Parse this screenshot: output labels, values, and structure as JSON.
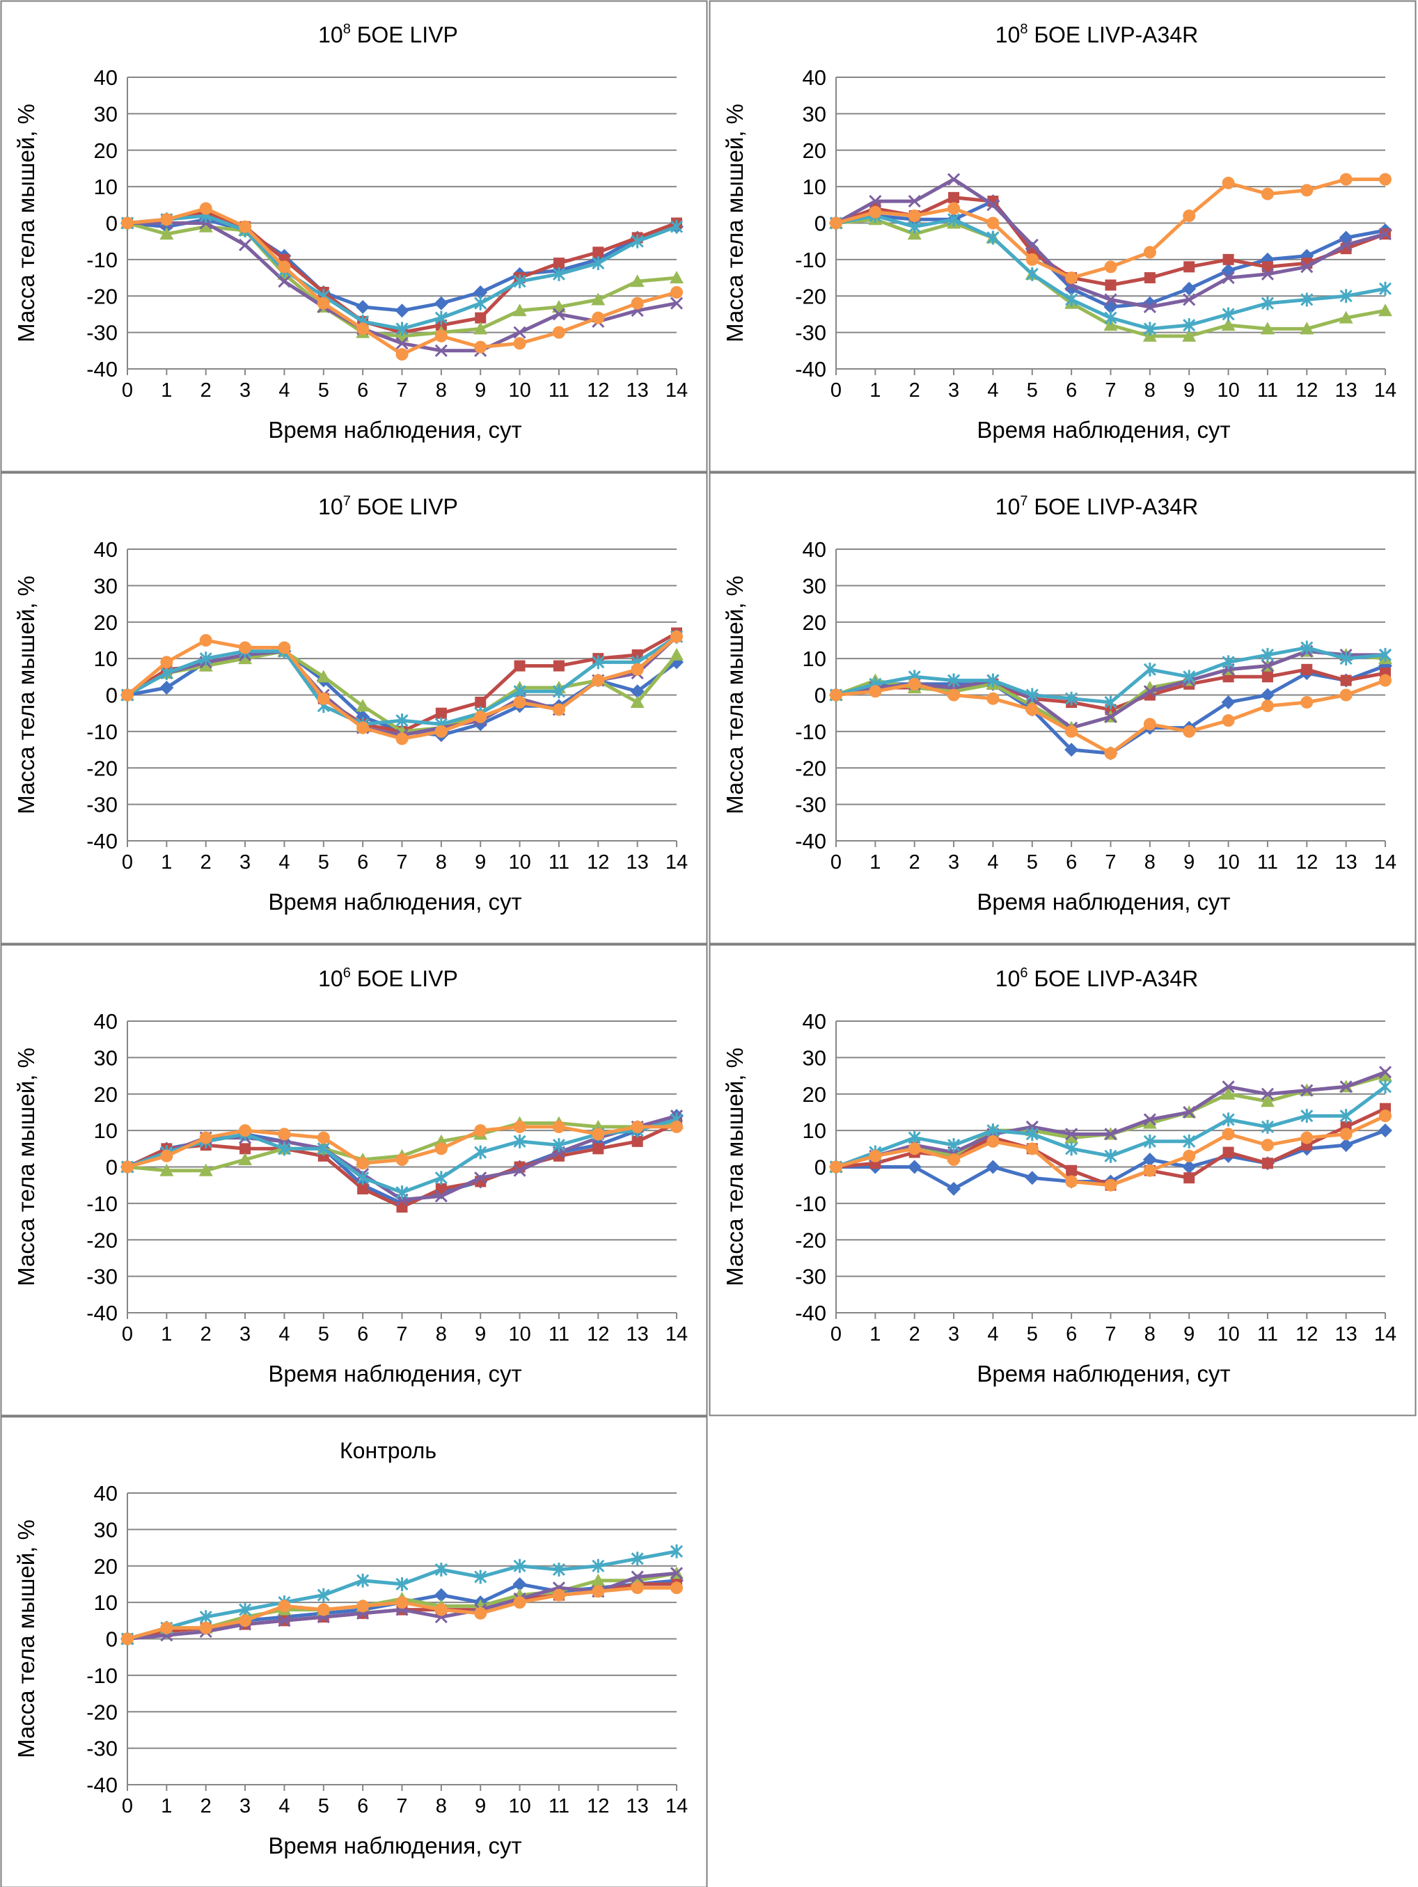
{
  "chart_data": [
    {
      "type": "line",
      "title": "БОЕ LIVP",
      "title_base": "10",
      "title_exp": "8",
      "xlabel": "Время наблюдения, сут",
      "ylabel": "Масса тела мышей, %",
      "xlim": [
        0,
        14
      ],
      "ylim": [
        -40,
        40
      ],
      "x": [
        0,
        1,
        2,
        3,
        4,
        5,
        6,
        7,
        8,
        9,
        10,
        11,
        12,
        13,
        14
      ],
      "x_ticks": [
        "0",
        "1",
        "2",
        "3",
        "4",
        "5",
        "6",
        "7",
        "8",
        "9",
        "10",
        "11",
        "12",
        "13",
        "14"
      ],
      "y_ticks": [
        "40",
        "30",
        "20",
        "10",
        "0",
        "-10",
        "-20",
        "-30",
        "-40"
      ],
      "grid": true,
      "series": [
        {
          "values": [
            0,
            -1,
            1,
            -2,
            -9,
            -19,
            -23,
            -24,
            -22,
            -19,
            -14,
            -13,
            -10,
            -4,
            -1
          ]
        },
        {
          "values": [
            0,
            1,
            3,
            -1,
            -10,
            -19,
            -27,
            -30,
            -28,
            -26,
            -15,
            -11,
            -8,
            -4,
            0
          ]
        },
        {
          "values": [
            0,
            -3,
            -1,
            -2,
            -14,
            -23,
            -30,
            -31,
            -30,
            -29,
            -24,
            -23,
            -21,
            -16,
            -15
          ]
        },
        {
          "values": [
            0,
            0,
            0,
            -6,
            -16,
            -23,
            -29,
            -33,
            -35,
            -35,
            -30,
            -25,
            -27,
            -24,
            -22
          ]
        },
        {
          "values": [
            0,
            1,
            2,
            -2,
            -13,
            -20,
            -27,
            -29,
            -26,
            -22,
            -16,
            -14,
            -11,
            -5,
            -1
          ]
        },
        {
          "values": [
            0,
            1,
            4,
            -1,
            -12,
            -22,
            -29,
            -36,
            -31,
            -34,
            -33,
            -30,
            -26,
            -22,
            -19
          ]
        }
      ]
    },
    {
      "type": "line",
      "title": "БОЕ LIVP-A34R",
      "title_base": "10",
      "title_exp": "8",
      "xlabel": "Время наблюдения, сут",
      "ylabel": "Масса тела мышей, %",
      "xlim": [
        0,
        14
      ],
      "ylim": [
        -40,
        40
      ],
      "x": [
        0,
        1,
        2,
        3,
        4,
        5,
        6,
        7,
        8,
        9,
        10,
        11,
        12,
        13,
        14
      ],
      "x_ticks": [
        "0",
        "1",
        "2",
        "3",
        "4",
        "5",
        "6",
        "7",
        "8",
        "9",
        "10",
        "11",
        "12",
        "13",
        "14"
      ],
      "y_ticks": [
        "40",
        "30",
        "20",
        "10",
        "0",
        "-10",
        "-20",
        "-30",
        "-40"
      ],
      "grid": true,
      "series": [
        {
          "values": [
            0,
            2,
            1,
            1,
            6,
            -7,
            -18,
            -23,
            -22,
            -18,
            -13,
            -10,
            -9,
            -4,
            -2
          ]
        },
        {
          "values": [
            0,
            4,
            2,
            7,
            6,
            -8,
            -15,
            -17,
            -15,
            -12,
            -10,
            -12,
            -11,
            -7,
            -3
          ]
        },
        {
          "values": [
            0,
            1,
            -3,
            0,
            -4,
            -14,
            -22,
            -28,
            -31,
            -31,
            -28,
            -29,
            -29,
            -26,
            -24
          ]
        },
        {
          "values": [
            0,
            6,
            6,
            12,
            5,
            -6,
            -17,
            -21,
            -23,
            -21,
            -15,
            -14,
            -12,
            -6,
            -3
          ]
        },
        {
          "values": [
            0,
            2,
            -1,
            1,
            -4,
            -14,
            -21,
            -26,
            -29,
            -28,
            -25,
            -22,
            -21,
            -20,
            -18
          ]
        },
        {
          "values": [
            0,
            3,
            2,
            4,
            0,
            -10,
            -15,
            -12,
            -8,
            2,
            11,
            8,
            9,
            12,
            12
          ]
        }
      ]
    },
    {
      "type": "line",
      "title": "БОЕ LIVP",
      "title_base": "10",
      "title_exp": "7",
      "xlabel": "Время наблюдения, сут",
      "ylabel": "Масса тела мышей, %",
      "xlim": [
        0,
        14
      ],
      "ylim": [
        -40,
        40
      ],
      "x": [
        0,
        1,
        2,
        3,
        4,
        5,
        6,
        7,
        8,
        9,
        10,
        11,
        12,
        13,
        14
      ],
      "x_ticks": [
        "0",
        "1",
        "2",
        "3",
        "4",
        "5",
        "6",
        "7",
        "8",
        "9",
        "10",
        "11",
        "12",
        "13",
        "14"
      ],
      "y_ticks": [
        "40",
        "30",
        "20",
        "10",
        "0",
        "-10",
        "-20",
        "-30",
        "-40"
      ],
      "grid": true,
      "series": [
        {
          "values": [
            0,
            2,
            9,
            11,
            12,
            4,
            -6,
            -10,
            -11,
            -8,
            -3,
            -3,
            4,
            1,
            9
          ]
        },
        {
          "values": [
            0,
            7,
            8,
            11,
            12,
            -1,
            -8,
            -10,
            -5,
            -2,
            8,
            8,
            10,
            11,
            17
          ]
        },
        {
          "values": [
            0,
            6,
            8,
            10,
            12,
            5,
            -3,
            -10,
            -9,
            -5,
            2,
            2,
            4,
            -2,
            11
          ]
        },
        {
          "values": [
            0,
            6,
            9,
            11,
            12,
            0,
            -9,
            -11,
            -9,
            -7,
            -1,
            -4,
            4,
            6,
            16
          ]
        },
        {
          "values": [
            0,
            6,
            10,
            12,
            12,
            -3,
            -8,
            -7,
            -8,
            -5,
            1,
            1,
            9,
            9,
            16
          ]
        },
        {
          "values": [
            0,
            9,
            15,
            13,
            13,
            -1,
            -9,
            -12,
            -10,
            -6,
            -2,
            -4,
            4,
            7,
            16
          ]
        }
      ]
    },
    {
      "type": "line",
      "title": "БОЕ LIVP-A34R",
      "title_base": "10",
      "title_exp": "7",
      "xlabel": "Время наблюдения, сут",
      "ylabel": "Масса тела мышей, %",
      "xlim": [
        0,
        14
      ],
      "ylim": [
        -40,
        40
      ],
      "x": [
        0,
        1,
        2,
        3,
        4,
        5,
        6,
        7,
        8,
        9,
        10,
        11,
        12,
        13,
        14
      ],
      "x_ticks": [
        "0",
        "1",
        "2",
        "3",
        "4",
        "5",
        "6",
        "7",
        "8",
        "9",
        "10",
        "11",
        "12",
        "13",
        "14"
      ],
      "y_ticks": [
        "40",
        "30",
        "20",
        "10",
        "0",
        "-10",
        "-20",
        "-30",
        "-40"
      ],
      "grid": true,
      "series": [
        {
          "values": [
            0,
            3,
            3,
            3,
            3,
            -4,
            -15,
            -16,
            -9,
            -9,
            -2,
            0,
            6,
            4,
            8
          ]
        },
        {
          "values": [
            0,
            2,
            2,
            2,
            3,
            -1,
            -2,
            -4,
            0,
            3,
            5,
            5,
            7,
            4,
            6
          ]
        },
        {
          "values": [
            0,
            4,
            2,
            1,
            3,
            -3,
            -9,
            -6,
            2,
            4,
            7,
            8,
            12,
            11,
            10
          ]
        },
        {
          "values": [
            0,
            2,
            3,
            2,
            4,
            -1,
            -9,
            -6,
            1,
            4,
            7,
            8,
            12,
            11,
            11
          ]
        },
        {
          "values": [
            0,
            3,
            5,
            4,
            4,
            0,
            -1,
            -2,
            7,
            5,
            9,
            11,
            13,
            10,
            11
          ]
        },
        {
          "values": [
            0,
            1,
            3,
            0,
            -1,
            -4,
            -10,
            -16,
            -8,
            -10,
            -7,
            -3,
            -2,
            0,
            4
          ]
        }
      ]
    },
    {
      "type": "line",
      "title": "БОЕ LIVP",
      "title_base": "10",
      "title_exp": "6",
      "xlabel": "Время наблюдения, сут",
      "ylabel": "Масса тела мышей, %",
      "xlim": [
        0,
        14
      ],
      "ylim": [
        -40,
        40
      ],
      "x": [
        0,
        1,
        2,
        3,
        4,
        5,
        6,
        7,
        8,
        9,
        10,
        11,
        12,
        13,
        14
      ],
      "x_ticks": [
        "0",
        "1",
        "2",
        "3",
        "4",
        "5",
        "6",
        "7",
        "8",
        "9",
        "10",
        "11",
        "12",
        "13",
        "14"
      ],
      "y_ticks": [
        "40",
        "30",
        "20",
        "10",
        "0",
        "-10",
        "-20",
        "-30",
        "-40"
      ],
      "grid": true,
      "series": [
        {
          "values": [
            0,
            5,
            7,
            9,
            7,
            5,
            -5,
            -10,
            -7,
            -4,
            0,
            4,
            6,
            10,
            14
          ]
        },
        {
          "values": [
            0,
            5,
            6,
            5,
            5,
            3,
            -6,
            -11,
            -6,
            -4,
            0,
            3,
            5,
            7,
            12
          ]
        },
        {
          "values": [
            0,
            -1,
            -1,
            2,
            5,
            5,
            2,
            3,
            7,
            9,
            12,
            12,
            11,
            11,
            12
          ]
        },
        {
          "values": [
            0,
            4,
            8,
            8,
            7,
            5,
            -2,
            -9,
            -8,
            -3,
            -1,
            4,
            8,
            11,
            14
          ]
        },
        {
          "values": [
            0,
            4,
            7,
            9,
            5,
            5,
            -3,
            -7,
            -3,
            4,
            7,
            6,
            9,
            10,
            13
          ]
        },
        {
          "values": [
            0,
            3,
            8,
            10,
            9,
            8,
            1,
            2,
            5,
            10,
            11,
            11,
            9,
            11,
            11
          ]
        }
      ]
    },
    {
      "type": "line",
      "title": "БОЕ LIVP-A34R",
      "title_base": "10",
      "title_exp": "6",
      "xlabel": "Время наблюдения, сут",
      "ylabel": "Масса тела мышей, %",
      "xlim": [
        0,
        14
      ],
      "ylim": [
        -40,
        40
      ],
      "x": [
        0,
        1,
        2,
        3,
        4,
        5,
        6,
        7,
        8,
        9,
        10,
        11,
        12,
        13,
        14
      ],
      "x_ticks": [
        "0",
        "1",
        "2",
        "3",
        "4",
        "5",
        "6",
        "7",
        "8",
        "9",
        "10",
        "11",
        "12",
        "13",
        "14"
      ],
      "y_ticks": [
        "40",
        "30",
        "20",
        "10",
        "0",
        "-10",
        "-20",
        "-30",
        "-40"
      ],
      "grid": true,
      "series": [
        {
          "values": [
            0,
            0,
            0,
            -6,
            0,
            -3,
            -4,
            -4,
            2,
            0,
            3,
            1,
            5,
            6,
            10
          ]
        },
        {
          "values": [
            0,
            1,
            4,
            3,
            8,
            5,
            -1,
            -5,
            -1,
            -3,
            4,
            1,
            6,
            11,
            16
          ]
        },
        {
          "values": [
            0,
            3,
            6,
            3,
            10,
            10,
            8,
            9,
            12,
            15,
            20,
            18,
            21,
            22,
            25
          ]
        },
        {
          "values": [
            0,
            3,
            6,
            4,
            9,
            11,
            9,
            9,
            13,
            15,
            22,
            20,
            21,
            22,
            26
          ]
        },
        {
          "values": [
            0,
            4,
            8,
            6,
            10,
            9,
            5,
            3,
            7,
            7,
            13,
            11,
            14,
            14,
            22
          ]
        },
        {
          "values": [
            0,
            3,
            5,
            2,
            7,
            5,
            -4,
            -5,
            -1,
            3,
            9,
            6,
            8,
            9,
            14
          ]
        }
      ]
    },
    {
      "type": "line",
      "title": "Контроль",
      "title_base": "",
      "title_exp": "",
      "xlabel": "Время наблюдения, сут",
      "ylabel": "Масса тела мышей, %",
      "xlim": [
        0,
        14
      ],
      "ylim": [
        -40,
        40
      ],
      "x": [
        0,
        1,
        2,
        3,
        4,
        5,
        6,
        7,
        8,
        9,
        10,
        11,
        12,
        13,
        14
      ],
      "x_ticks": [
        "0",
        "1",
        "2",
        "3",
        "4",
        "5",
        "6",
        "7",
        "8",
        "9",
        "10",
        "11",
        "12",
        "13",
        "14"
      ],
      "y_ticks": [
        "40",
        "30",
        "20",
        "10",
        "0",
        "-10",
        "-20",
        "-30",
        "-40"
      ],
      "grid": true,
      "series": [
        {
          "values": [
            0,
            2,
            3,
            5,
            6,
            7,
            8,
            10,
            12,
            10,
            15,
            13,
            14,
            15,
            16
          ]
        },
        {
          "values": [
            0,
            2,
            3,
            4,
            5,
            6,
            7,
            8,
            8,
            8,
            11,
            12,
            13,
            15,
            15
          ]
        },
        {
          "values": [
            0,
            3,
            3,
            6,
            8,
            8,
            9,
            11,
            9,
            9,
            12,
            13,
            16,
            16,
            18
          ]
        },
        {
          "values": [
            0,
            1,
            2,
            4,
            5,
            6,
            7,
            8,
            6,
            8,
            11,
            14,
            13,
            17,
            18
          ]
        },
        {
          "values": [
            0,
            3,
            6,
            8,
            10,
            12,
            16,
            15,
            19,
            17,
            20,
            19,
            20,
            22,
            24
          ]
        },
        {
          "values": [
            0,
            3,
            3,
            5,
            9,
            8,
            9,
            10,
            8,
            7,
            10,
            12,
            13,
            14,
            14
          ]
        }
      ]
    }
  ],
  "colors": {
    "series": [
      "#4472c4",
      "#be4b48",
      "#98b954",
      "#7d60a0",
      "#46aac5",
      "#f79646"
    ],
    "markers": [
      "diamond",
      "square",
      "triangle",
      "cross",
      "star",
      "circle"
    ],
    "grid": "#868686",
    "axis": "#868686",
    "frame": "#7f7f7f",
    "text": "#000000"
  }
}
